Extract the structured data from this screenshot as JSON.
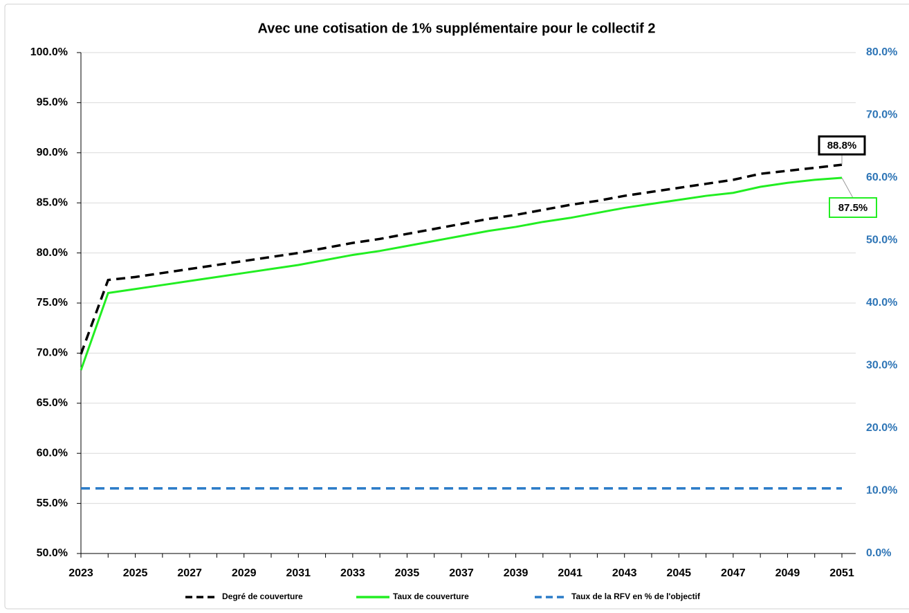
{
  "chart_data": {
    "type": "line",
    "title": "Avec une cotisation de 1% supplémentaire pour le collectif 2",
    "x": [
      2023,
      2024,
      2025,
      2026,
      2027,
      2028,
      2029,
      2030,
      2031,
      2032,
      2033,
      2034,
      2035,
      2036,
      2037,
      2038,
      2039,
      2040,
      2041,
      2042,
      2043,
      2044,
      2045,
      2046,
      2047,
      2048,
      2049,
      2050,
      2051
    ],
    "xlim": [
      2023,
      2051
    ],
    "xticks": [
      2023,
      2025,
      2027,
      2029,
      2031,
      2033,
      2035,
      2037,
      2039,
      2041,
      2043,
      2045,
      2047,
      2049,
      2051
    ],
    "ylim": [
      50,
      100
    ],
    "yticks": [
      {
        "value": 50,
        "label": "50.0%"
      },
      {
        "value": 55,
        "label": "55.0%"
      },
      {
        "value": 60,
        "label": "60.0%"
      },
      {
        "value": 65,
        "label": "65.0%"
      },
      {
        "value": 70,
        "label": "70.0%"
      },
      {
        "value": 75,
        "label": "75.0%"
      },
      {
        "value": 80,
        "label": "80.0%"
      },
      {
        "value": 85,
        "label": "85.0%"
      },
      {
        "value": 90,
        "label": "90.0%"
      },
      {
        "value": 95,
        "label": "95.0%"
      },
      {
        "value": 100,
        "label": "100.0%"
      }
    ],
    "y2lim": [
      0,
      80
    ],
    "y2ticks": [
      {
        "value": 0,
        "label": "0.0%"
      },
      {
        "value": 10,
        "label": "10.0%"
      },
      {
        "value": 20,
        "label": "20.0%"
      },
      {
        "value": 30,
        "label": "30.0%"
      },
      {
        "value": 40,
        "label": "40.0%"
      },
      {
        "value": 50,
        "label": "50.0%"
      },
      {
        "value": 60,
        "label": "60.0%"
      },
      {
        "value": 70,
        "label": "70.0%"
      },
      {
        "value": 80,
        "label": "80.0%"
      }
    ],
    "grid": true,
    "legend": "bottom",
    "series": [
      {
        "name": "Degré de couverture",
        "color": "#000000",
        "dash": true,
        "values": [
          69.9,
          77.3,
          77.6,
          78.0,
          78.4,
          78.8,
          79.2,
          79.6,
          80.0,
          80.5,
          81.0,
          81.4,
          81.9,
          82.4,
          82.9,
          83.4,
          83.8,
          84.3,
          84.8,
          85.2,
          85.7,
          86.1,
          86.5,
          86.9,
          87.3,
          87.9,
          88.2,
          88.5,
          88.8
        ],
        "value_labels": [
          null,
          null,
          null,
          null,
          null,
          null,
          null,
          null,
          null,
          null,
          null,
          null,
          null,
          null,
          null,
          null,
          null,
          null,
          null,
          null,
          null,
          null,
          null,
          null,
          null,
          null,
          null,
          null,
          "88.8%"
        ]
      },
      {
        "name": "Taux de couverture",
        "color": "#22ee22",
        "dash": false,
        "values": [
          68.3,
          76.0,
          76.4,
          76.8,
          77.2,
          77.6,
          78.0,
          78.4,
          78.8,
          79.3,
          79.8,
          80.2,
          80.7,
          81.2,
          81.7,
          82.2,
          82.6,
          83.1,
          83.5,
          84.0,
          84.5,
          84.9,
          85.3,
          85.7,
          86.0,
          86.6,
          87.0,
          87.3,
          87.5
        ],
        "value_labels": [
          null,
          null,
          null,
          null,
          null,
          null,
          null,
          null,
          null,
          null,
          null,
          null,
          null,
          null,
          null,
          null,
          null,
          null,
          null,
          null,
          null,
          null,
          null,
          null,
          null,
          null,
          null,
          null,
          "87.5%"
        ]
      },
      {
        "name": "Taux de la RFV en % de l'objectif",
        "color": "#2a7bc8",
        "dash": true,
        "axis": "y2",
        "values": [
          10.4,
          10.4,
          10.4,
          10.4,
          10.4,
          10.4,
          10.4,
          10.4,
          10.4,
          10.4,
          10.4,
          10.4,
          10.4,
          10.4,
          10.4,
          10.4,
          10.4,
          10.4,
          10.4,
          10.4,
          10.4,
          10.4,
          10.4,
          10.4,
          10.4,
          10.4,
          10.4,
          10.4,
          10.4
        ]
      }
    ]
  }
}
